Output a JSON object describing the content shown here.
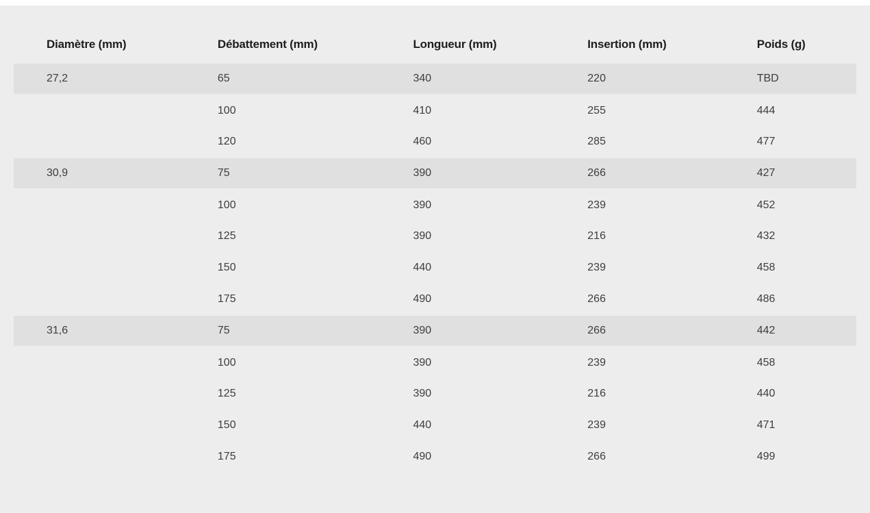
{
  "colors": {
    "page_background": "#ededed",
    "top_strip": "#ffffff",
    "shaded_row_background": "#e0e0e0",
    "header_text": "#1d1d1d",
    "cell_text": "#3d3d3d"
  },
  "table": {
    "headers": [
      "Diamètre (mm)",
      "Débattement (mm)",
      "Longueur (mm)",
      "Insertion (mm)",
      "Poids (g)"
    ],
    "rows": [
      {
        "cells": [
          "27,2",
          "65",
          "340",
          "220",
          "TBD"
        ],
        "shaded": true
      },
      {
        "cells": [
          "",
          "100",
          "410",
          "255",
          "444"
        ],
        "shaded": false
      },
      {
        "cells": [
          "",
          "120",
          "460",
          "285",
          "477"
        ],
        "shaded": false
      },
      {
        "cells": [
          "30,9",
          "75",
          "390",
          "266",
          "427"
        ],
        "shaded": true
      },
      {
        "cells": [
          "",
          "100",
          "390",
          "239",
          "452"
        ],
        "shaded": false
      },
      {
        "cells": [
          "",
          "125",
          "390",
          "216",
          "432"
        ],
        "shaded": false
      },
      {
        "cells": [
          "",
          "150",
          "440",
          "239",
          "458"
        ],
        "shaded": false
      },
      {
        "cells": [
          "",
          "175",
          "490",
          "266",
          "486"
        ],
        "shaded": false
      },
      {
        "cells": [
          "31,6",
          "75",
          "390",
          "266",
          "442"
        ],
        "shaded": true
      },
      {
        "cells": [
          "",
          "100",
          "390",
          "239",
          "458"
        ],
        "shaded": false
      },
      {
        "cells": [
          "",
          "125",
          "390",
          "216",
          "440"
        ],
        "shaded": false
      },
      {
        "cells": [
          "",
          "150",
          "440",
          "239",
          "471"
        ],
        "shaded": false
      },
      {
        "cells": [
          "",
          "175",
          "490",
          "266",
          "499"
        ],
        "shaded": false
      }
    ]
  },
  "chart_data": {
    "type": "table",
    "title": "",
    "columns": [
      "Diamètre (mm)",
      "Débattement (mm)",
      "Longueur (mm)",
      "Insertion (mm)",
      "Poids (g)"
    ],
    "rows": [
      [
        "27,2",
        "65",
        "340",
        "220",
        "TBD"
      ],
      [
        "",
        "100",
        "410",
        "255",
        "444"
      ],
      [
        "",
        "120",
        "460",
        "285",
        "477"
      ],
      [
        "30,9",
        "75",
        "390",
        "266",
        "427"
      ],
      [
        "",
        "100",
        "390",
        "239",
        "452"
      ],
      [
        "",
        "125",
        "390",
        "216",
        "432"
      ],
      [
        "",
        "150",
        "440",
        "239",
        "458"
      ],
      [
        "",
        "175",
        "490",
        "266",
        "486"
      ],
      [
        "31,6",
        "75",
        "390",
        "266",
        "442"
      ],
      [
        "",
        "100",
        "390",
        "239",
        "458"
      ],
      [
        "",
        "125",
        "390",
        "216",
        "440"
      ],
      [
        "",
        "150",
        "440",
        "239",
        "471"
      ],
      [
        "",
        "175",
        "490",
        "266",
        "499"
      ]
    ],
    "groups": [
      {
        "diametre_mm": "27,2",
        "row_indexes": [
          0,
          1,
          2
        ]
      },
      {
        "diametre_mm": "30,9",
        "row_indexes": [
          3,
          4,
          5,
          6,
          7
        ]
      },
      {
        "diametre_mm": "31,6",
        "row_indexes": [
          8,
          9,
          10,
          11,
          12
        ]
      }
    ],
    "layout": {
      "group_first_row_shaded": true,
      "grid": "off"
    }
  }
}
